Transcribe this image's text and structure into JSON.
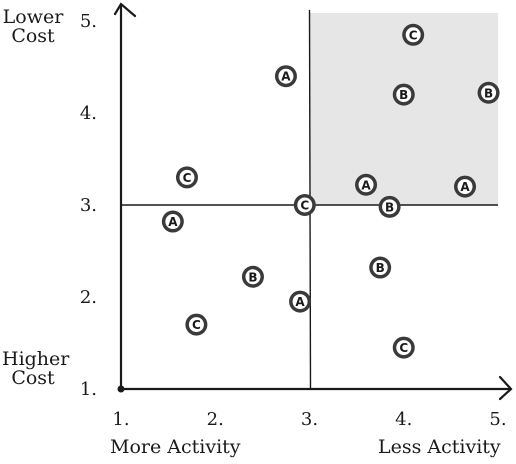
{
  "chart_data": {
    "type": "scatter",
    "x_ticks": [
      "1.",
      "2.",
      "3.",
      "4.",
      "5."
    ],
    "y_ticks": [
      "1.",
      "2.",
      "3.",
      "4.",
      "5."
    ],
    "xlim": [
      1,
      5
    ],
    "ylim": [
      1,
      5
    ],
    "x_axis_low_label": "More Activity",
    "x_axis_high_label": "Less Activity",
    "y_axis_top_label": [
      "Lower",
      "Cost"
    ],
    "y_axis_bottom_label": [
      "Higher",
      "Cost"
    ],
    "reference_lines": {
      "x": 3,
      "y": 3
    },
    "highlighted_quadrant": {
      "x": [
        3,
        5
      ],
      "y": [
        3,
        5
      ],
      "color": "#e6e6e6"
    },
    "grid": false,
    "points": [
      {
        "label": "C",
        "x": 4.1,
        "y": 4.85
      },
      {
        "label": "A",
        "x": 2.75,
        "y": 4.4
      },
      {
        "label": "B",
        "x": 4.0,
        "y": 4.2
      },
      {
        "label": "B",
        "x": 4.9,
        "y": 4.22
      },
      {
        "label": "C",
        "x": 1.7,
        "y": 3.3
      },
      {
        "label": "A",
        "x": 3.6,
        "y": 3.22
      },
      {
        "label": "A",
        "x": 4.65,
        "y": 3.2
      },
      {
        "label": "C",
        "x": 2.95,
        "y": 3.0
      },
      {
        "label": "B",
        "x": 3.85,
        "y": 2.98
      },
      {
        "label": "A",
        "x": 1.55,
        "y": 2.82
      },
      {
        "label": "B",
        "x": 2.4,
        "y": 2.22
      },
      {
        "label": "B",
        "x": 3.75,
        "y": 2.32
      },
      {
        "label": "A",
        "x": 2.9,
        "y": 1.95
      },
      {
        "label": "C",
        "x": 1.8,
        "y": 1.7
      },
      {
        "label": "C",
        "x": 4.0,
        "y": 1.45
      }
    ]
  }
}
